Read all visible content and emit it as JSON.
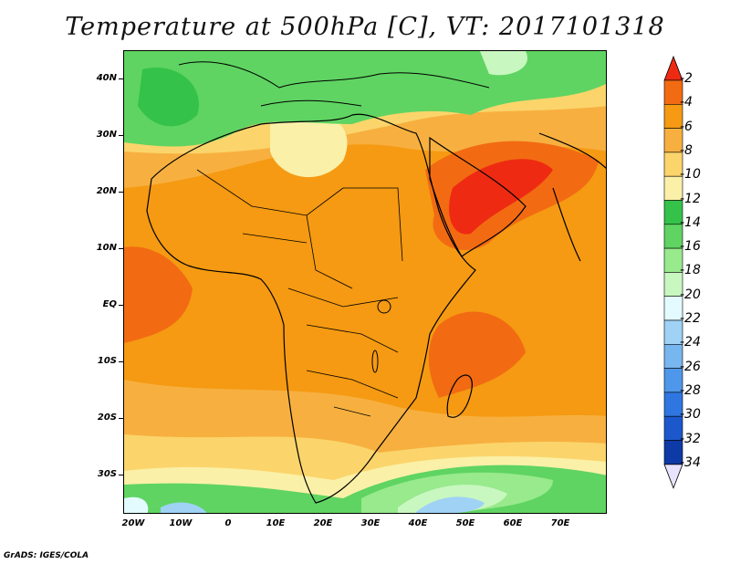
{
  "title": "Temperature at 500hPa [C], VT: 2017101318",
  "credit": "GrADS: IGES/COLA",
  "lat_labels": [
    "40N",
    "30N",
    "20N",
    "10N",
    "EQ",
    "10S",
    "20S",
    "30S"
  ],
  "lon_labels": [
    "20W",
    "10W",
    "0",
    "10E",
    "20E",
    "30E",
    "40E",
    "50E",
    "60E",
    "70E"
  ],
  "colorbar": {
    "labels": [
      "-2",
      "-4",
      "-6",
      "-8",
      "-10",
      "-12",
      "-14",
      "-16",
      "-18",
      "-20",
      "-22",
      "-24",
      "-26",
      "-28",
      "-30",
      "-32",
      "-34"
    ],
    "colors": [
      "#ee2b12",
      "#f26b12",
      "#f59a12",
      "#f7b040",
      "#fbd56b",
      "#fbf0a8",
      "#35c24a",
      "#5fd462",
      "#98ea8c",
      "#c8f7c0",
      "#e3fbff",
      "#9fd2f5",
      "#78b6ef",
      "#4f97ea",
      "#2f76e0",
      "#1c58cc",
      "#0d3aa6",
      "#0a1c73"
    ]
  }
}
